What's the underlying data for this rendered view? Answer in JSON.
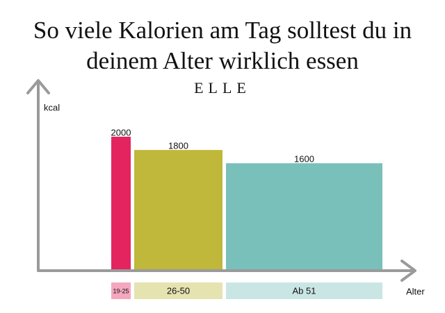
{
  "chart_data": {
    "type": "bar",
    "title": "So viele Kalorien am Tag solltest du in deinem Alter wirklich essen",
    "subtitle": "ELLE",
    "y_label": "kcal",
    "x_label": "Alter",
    "categories": [
      "19-25",
      "26-50",
      "Ab 51"
    ],
    "values": [
      2000,
      1800,
      1600
    ],
    "colors": [
      "#e4245f",
      "#bfb83a",
      "#79c0bb"
    ],
    "ylim": [
      0,
      2000
    ]
  }
}
